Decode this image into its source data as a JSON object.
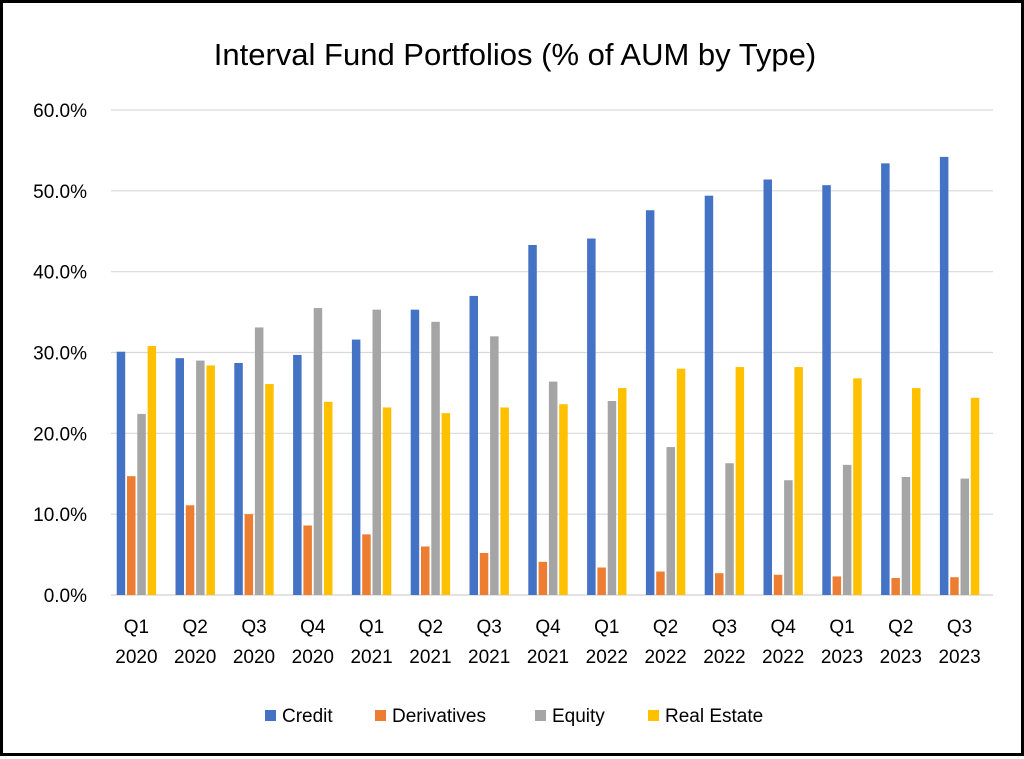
{
  "chart_data": {
    "type": "bar",
    "title": "Interval Fund Portfolios (% of AUM by Type)",
    "xlabel": "",
    "ylabel": "",
    "ylim": [
      0,
      60
    ],
    "yticks": [
      "0.0%",
      "10.0%",
      "20.0%",
      "30.0%",
      "40.0%",
      "50.0%",
      "60.0%"
    ],
    "grid": true,
    "legend_position": "bottom",
    "categories": [
      [
        "Q1",
        "2020"
      ],
      [
        "Q2",
        "2020"
      ],
      [
        "Q3",
        "2020"
      ],
      [
        "Q4",
        "2020"
      ],
      [
        "Q1",
        "2021"
      ],
      [
        "Q2",
        "2021"
      ],
      [
        "Q3",
        "2021"
      ],
      [
        "Q4",
        "2021"
      ],
      [
        "Q1",
        "2022"
      ],
      [
        "Q2",
        "2022"
      ],
      [
        "Q3",
        "2022"
      ],
      [
        "Q4",
        "2022"
      ],
      [
        "Q1",
        "2023"
      ],
      [
        "Q2",
        "2023"
      ],
      [
        "Q3",
        "2023"
      ]
    ],
    "series": [
      {
        "name": "Credit",
        "color": "#4472c4",
        "values": [
          30.1,
          29.3,
          28.7,
          29.7,
          31.6,
          35.3,
          37.0,
          43.3,
          44.1,
          47.6,
          49.4,
          51.4,
          50.7,
          53.4,
          54.2
        ]
      },
      {
        "name": "Derivatives",
        "color": "#ed7d31",
        "values": [
          14.7,
          11.1,
          10.0,
          8.6,
          7.5,
          6.0,
          5.2,
          4.1,
          3.4,
          2.9,
          2.7,
          2.5,
          2.3,
          2.1,
          2.2
        ]
      },
      {
        "name": "Equity",
        "color": "#a5a5a5",
        "values": [
          22.4,
          29.0,
          33.1,
          35.5,
          35.3,
          33.8,
          32.0,
          26.4,
          24.0,
          18.3,
          16.3,
          14.2,
          16.1,
          14.6,
          14.4
        ]
      },
      {
        "name": "Real Estate",
        "color": "#ffc000",
        "values": [
          30.8,
          28.4,
          26.1,
          23.9,
          23.2,
          22.5,
          23.2,
          23.6,
          25.6,
          28.0,
          28.2,
          28.2,
          26.8,
          25.6,
          24.4
        ]
      }
    ]
  }
}
